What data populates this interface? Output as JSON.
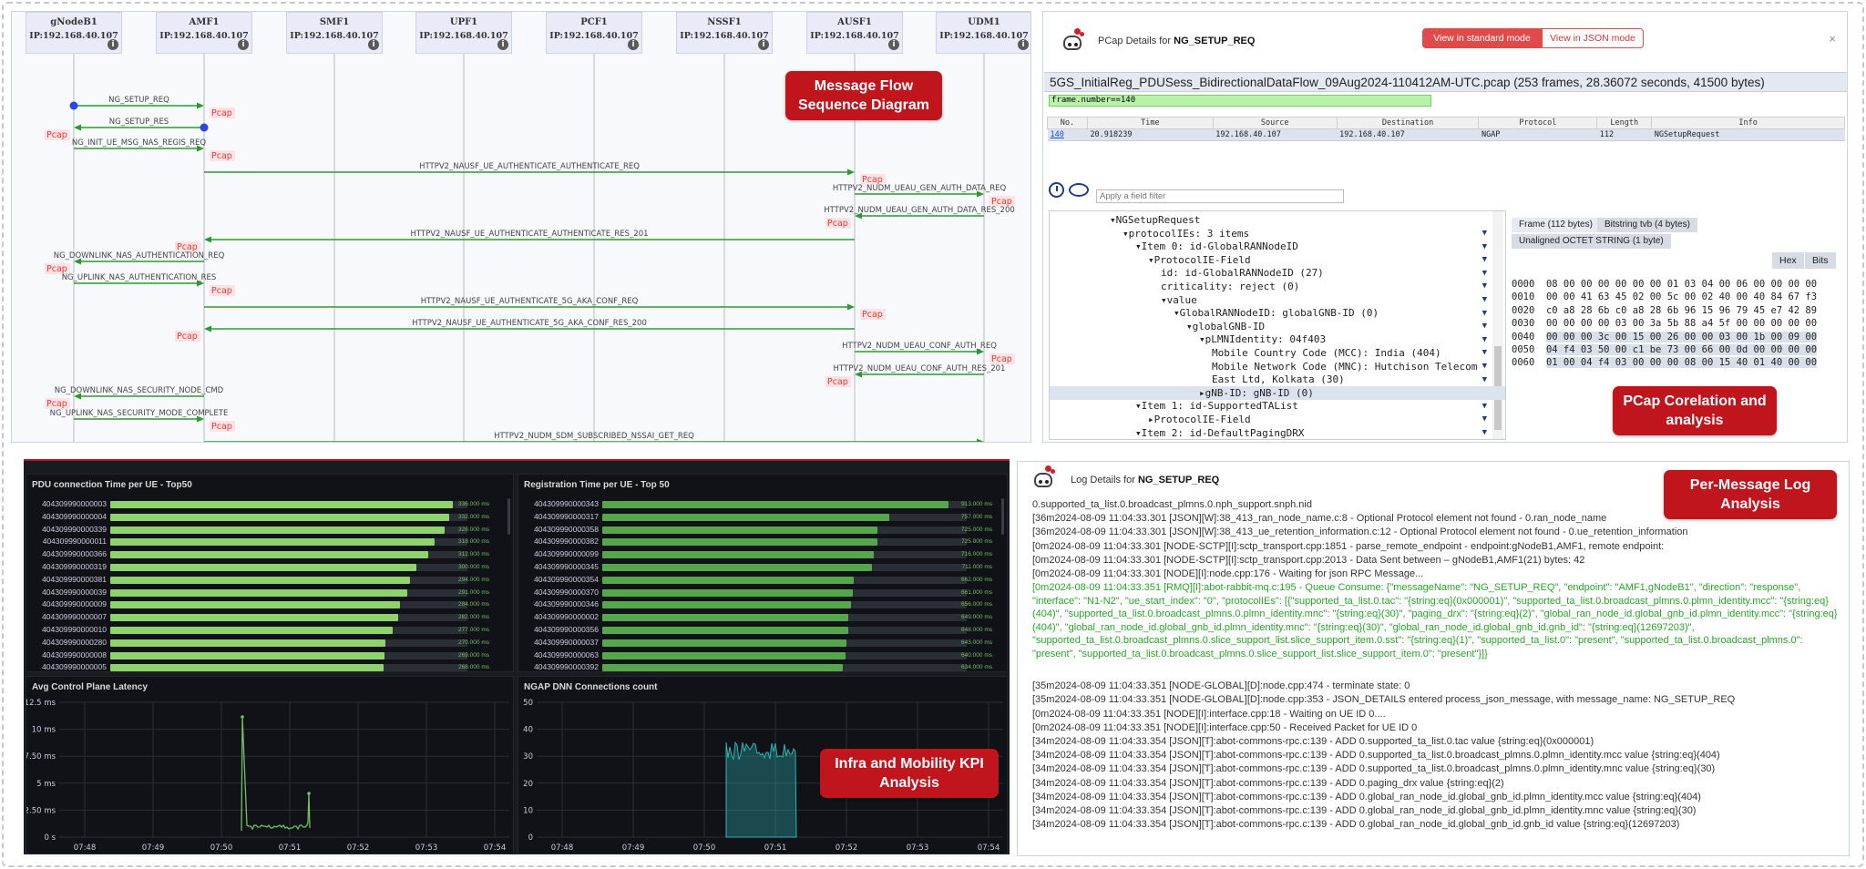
{
  "sequence": {
    "nodes": [
      {
        "name": "gNodeB1",
        "ip": "IP:192.168.40.107"
      },
      {
        "name": "AMF1",
        "ip": "IP:192.168.40.107"
      },
      {
        "name": "SMF1",
        "ip": "IP:192.168.40.107"
      },
      {
        "name": "UPF1",
        "ip": "IP:192.168.40.107"
      },
      {
        "name": "PCF1",
        "ip": "IP:192.168.40.107"
      },
      {
        "name": "NSSF1",
        "ip": "IP:192.168.40.107"
      },
      {
        "name": "AUSF1",
        "ip": "IP:192.168.40.107"
      },
      {
        "name": "UDM1",
        "ip": "IP:192.168.40.107"
      }
    ],
    "info_icon": "i",
    "pcap_label": "Pcap",
    "messages": [
      {
        "label": "NG_SETUP_REQ",
        "from": 0,
        "to": 1
      },
      {
        "label": "NG_SETUP_RES",
        "from": 1,
        "to": 0
      },
      {
        "label": "NG_INIT_UE_MSG_NAS_REGIS_REQ",
        "from": 0,
        "to": 1
      },
      {
        "label": "HTTPV2_NAUSF_UE_AUTHENTICATE_AUTHENTICATE_REQ",
        "from": 1,
        "to": 6
      },
      {
        "label": "HTTPV2_NUDM_UEAU_GEN_AUTH_DATA_REQ",
        "from": 6,
        "to": 7
      },
      {
        "label": "HTTPV2_NUDM_UEAU_GEN_AUTH_DATA_RES_200",
        "from": 7,
        "to": 6
      },
      {
        "label": "HTTPV2_NAUSF_UE_AUTHENTICATE_AUTHENTICATE_RES_201",
        "from": 6,
        "to": 1
      },
      {
        "label": "NG_DOWNLINK_NAS_AUTHENTICATION_REQ",
        "from": 1,
        "to": 0
      },
      {
        "label": "NG_UPLINK_NAS_AUTHENTICATION_RES",
        "from": 0,
        "to": 1
      },
      {
        "label": "HTTPV2_NAUSF_UE_AUTHENTICATE_5G_AKA_CONF_REQ",
        "from": 1,
        "to": 6
      },
      {
        "label": "HTTPV2_NAUSF_UE_AUTHENTICATE_5G_AKA_CONF_RES_200",
        "from": 6,
        "to": 1
      },
      {
        "label": "HTTPV2_NUDM_UEAU_CONF_AUTH_REQ",
        "from": 6,
        "to": 7
      },
      {
        "label": "HTTPV2_NUDM_UEAU_CONF_AUTH_RES_201",
        "from": 7,
        "to": 6
      },
      {
        "label": "NG_DOWNLINK_NAS_SECURITY_NODE_CMD",
        "from": 1,
        "to": 0
      },
      {
        "label": "NG_UPLINK_NAS_SECURITY_MODE_COMPLETE",
        "from": 0,
        "to": 1
      },
      {
        "label": "HTTPV2_NUDM_SDM_SUBSCRIBED_NSSAI_GET_REQ",
        "from": 1,
        "to": 7
      }
    ]
  },
  "callouts": {
    "seq": "Message Flow Sequence Diagram",
    "pcap": "PCap Corelation and analysis",
    "kpi": "Infra and Mobility KPI Analysis",
    "log": "Per-Message Log Analysis"
  },
  "pcap": {
    "title_prefix": "PCap Details for ",
    "title_msg": "NG_SETUP_REQ",
    "btn_standard": "View in standard mode",
    "btn_json": "View in JSON mode",
    "close": "×",
    "file_line": "5GS_InitialReg_PDUSess_BidirectionalDataFlow_09Aug2024-110412AM-UTC.pcap (253 frames, 28.36072 seconds, 41500 bytes)",
    "display_filter": "frame.number==140",
    "columns": [
      "No.",
      "Time",
      "Source",
      "Destination",
      "Protocol",
      "Length",
      "Info"
    ],
    "row": [
      "140",
      "20.918239",
      "192.168.40.107",
      "192.168.40.107",
      "NGAP",
      "112",
      "NGSetupRequest"
    ],
    "field_filter_placeholder": "Apply a field filter",
    "tree": [
      {
        "indent": 0,
        "arrow": "▾",
        "text": "NGSetupRequest"
      },
      {
        "indent": 1,
        "arrow": "▾",
        "text": "protocolIEs: 3 items"
      },
      {
        "indent": 2,
        "arrow": "▾",
        "text": "Item 0: id-GlobalRANNodeID"
      },
      {
        "indent": 3,
        "arrow": "▾",
        "text": "ProtocolIE-Field"
      },
      {
        "indent": 4,
        "arrow": "",
        "text": "id: id-GlobalRANNodeID (27)"
      },
      {
        "indent": 4,
        "arrow": "",
        "text": "criticality: reject (0)"
      },
      {
        "indent": 4,
        "arrow": "▾",
        "text": "value"
      },
      {
        "indent": 5,
        "arrow": "▾",
        "text": "GlobalRANNodeID: globalGNB-ID (0)"
      },
      {
        "indent": 6,
        "arrow": "▾",
        "text": "globalGNB-ID"
      },
      {
        "indent": 7,
        "arrow": "▾",
        "text": "pLMNIdentity: 04f403"
      },
      {
        "indent": 8,
        "arrow": "",
        "text": "Mobile Country Code (MCC): India (404)"
      },
      {
        "indent": 8,
        "arrow": "",
        "text": "Mobile Network Code (MNC): Hutchison Telecom"
      },
      {
        "indent": 8,
        "arrow": "",
        "text": "East Ltd, Kolkata (30)"
      },
      {
        "indent": 7,
        "arrow": "▸",
        "text": "gNB-ID: gNB-ID (0)"
      },
      {
        "indent": 2,
        "arrow": "▾",
        "text": "Item 1: id-SupportedTAList"
      },
      {
        "indent": 3,
        "arrow": "▸",
        "text": "ProtocolIE-Field"
      },
      {
        "indent": 2,
        "arrow": "▾",
        "text": "Item 2: id-DefaultPagingDRX"
      }
    ],
    "tree_marker": "▼",
    "byte_tabs": [
      "Frame (112 bytes)",
      "Bitstring tvb (4 bytes)"
    ],
    "byte_tab2": "Unaligned OCTET STRING (1 byte)",
    "hex_btn": "Hex",
    "bits_btn": "Bits",
    "hex_rows": [
      {
        "off": "0000",
        "bytes": "08 00 00 00 00 00 00 01 03 04 00 06 00 00 00 00"
      },
      {
        "off": "0010",
        "bytes": "00 00 41 63 45 02 00 5c 00 02 40 00 40 84 67 f3"
      },
      {
        "off": "0020",
        "bytes": "c0 a8 28 6b c0 a8 28 6b 96 15 96 79 45 e7 42 89"
      },
      {
        "off": "0030",
        "bytes": "00 00 00 00 03 00 3a 5b 88 a4 5f 00 00 00 00 00"
      },
      {
        "off": "0040",
        "bytes": "00 00 00 3c 00 15 00 26 00 00 03 00 1b 00 09 00"
      },
      {
        "off": "0050",
        "bytes": "04 f4 03 50 00 c1 be 73 00 66 00 0d 00 00 00 00"
      },
      {
        "off": "0060",
        "bytes": "01 00 04 f4 03 00 00 00 08 00 15 40 01 40 00 00"
      }
    ]
  },
  "dashboard": {
    "pdu": {
      "title": "PDU connection Time per UE - Top50",
      "rows": [
        {
          "ue": "404309990000003",
          "value": 336,
          "label": "336.000 ms"
        },
        {
          "ue": "404309990000004",
          "value": 332,
          "label": "332.000 ms"
        },
        {
          "ue": "404309990000339",
          "value": 328,
          "label": "328.000 ms"
        },
        {
          "ue": "404309990000011",
          "value": 318,
          "label": "318.000 ms"
        },
        {
          "ue": "404309990000366",
          "value": 312,
          "label": "312.000 ms"
        },
        {
          "ue": "404309990000319",
          "value": 300,
          "label": "300.000 ms"
        },
        {
          "ue": "404309990000381",
          "value": 294,
          "label": "294.000 ms"
        },
        {
          "ue": "404309990000039",
          "value": 291,
          "label": "291.000 ms"
        },
        {
          "ue": "404309990000009",
          "value": 284,
          "label": "284.000 ms"
        },
        {
          "ue": "404309990000007",
          "value": 282,
          "label": "282.000 ms"
        },
        {
          "ue": "404309990000010",
          "value": 277,
          "label": "277.000 ms"
        },
        {
          "ue": "404309990000280",
          "value": 270,
          "label": "270.000 ms"
        },
        {
          "ue": "404309990000008",
          "value": 269,
          "label": "269.000 ms"
        },
        {
          "ue": "404309990000005",
          "value": 268,
          "label": "268.000 ms"
        }
      ]
    },
    "reg": {
      "title": "Registration Time per UE - Top 50",
      "rows": [
        {
          "ue": "404309990000343",
          "value": 913,
          "label": "913.000 ms"
        },
        {
          "ue": "404309990000317",
          "value": 757,
          "label": "757.000 ms"
        },
        {
          "ue": "404309990000358",
          "value": 725,
          "label": "725.000 ms"
        },
        {
          "ue": "404309990000382",
          "value": 725,
          "label": "725.000 ms"
        },
        {
          "ue": "404309990000099",
          "value": 716,
          "label": "716.000 ms"
        },
        {
          "ue": "404309990000345",
          "value": 711,
          "label": "711.000 ms"
        },
        {
          "ue": "404309990000354",
          "value": 662,
          "label": "662.000 ms"
        },
        {
          "ue": "404309990000370",
          "value": 661,
          "label": "661.000 ms"
        },
        {
          "ue": "404309990000346",
          "value": 656,
          "label": "656.000 ms"
        },
        {
          "ue": "404309990000002",
          "value": 649,
          "label": "649.000 ms"
        },
        {
          "ue": "404309990000356",
          "value": 648,
          "label": "648.000 ms"
        },
        {
          "ue": "404309990000037",
          "value": 643,
          "label": "643.000 ms"
        },
        {
          "ue": "404309990000063",
          "value": 640,
          "label": "640.000 ms"
        },
        {
          "ue": "404309990000392",
          "value": 634,
          "label": "634.000 ms"
        }
      ]
    },
    "latency": {
      "title": "Avg Control Plane Latency",
      "yticks": [
        "12.5 ms",
        "10 ms",
        "7.50 ms",
        "5 ms",
        "2.50 ms",
        "0 s"
      ],
      "xticks": [
        "07:48",
        "07:49",
        "07:50",
        "07:51",
        "07:52",
        "07:53",
        "07:54"
      ]
    },
    "ngap": {
      "title": "NGAP DNN Connections count",
      "yticks": [
        "50",
        "40",
        "30",
        "20",
        "10",
        "0"
      ],
      "xticks": [
        "07:48",
        "07:49",
        "07:50",
        "07:51",
        "07:52",
        "07:53",
        "07:54"
      ]
    }
  },
  "log": {
    "title_prefix": "Log Details for ",
    "title_msg": "NG_SETUP_REQ",
    "lines": [
      {
        "t": "0.supported_ta_list.0.broadcast_plmns.0.nph_support.snph.nid",
        "g": false
      },
      {
        "t": "[36m2024-08-09 11:04:33.301 [JSON][W]:38_413_ran_node_name.c:8 - Optional Protocol element not found - 0.ran_node_name",
        "g": false
      },
      {
        "t": "[36m2024-08-09 11:04:33.301 [JSON][W]:38_413_ue_retention_information.c:12 - Optional Protocol element not found - 0.ue_retention_information",
        "g": false
      },
      {
        "t": "[0m2024-08-09 11:04:33.301 [NODE-SCTP][I]:sctp_transport.cpp:1851 - parse_remote_endpoint - endpoint:gNodeB1,AMF1, remote endpoint:",
        "g": false
      },
      {
        "t": "[0m2024-08-09 11:04:33.301 [NODE-SCTP][I]:sctp_transport.cpp:2013 - Data Sent between – gNodeB1,AMF1(21) bytes: 42",
        "g": false
      },
      {
        "t": "[0m2024-08-09 11:04:33.301 [NODE][I]:node.cpp:176 - Waiting for json RPC Message...",
        "g": false
      }
    ],
    "green_block": "[0m2024-08-09 11:04:33.351 [RMQ][I]:abot-rabbit-mq.c:195 - Queue Consume: {\"messageName\": \"NG_SETUP_REQ\", \"endpoint\": \"AMF1,gNodeB1\", \"direction\": \"response\", \"interface\": \"N1-N2\", \"ue_start_index\": \"0\", \"protocolIEs\": [{\"supported_ta_list.0.tac\": \"{string:eq}(0x000001)\", \"supported_ta_list.0.broadcast_plmns.0.plmn_identity.mcc\": \"{string:eq}(404)\", \"supported_ta_list.0.broadcast_plmns.0.plmn_identity.mnc\": \"{string:eq}(30)\", \"paging_drx\": \"{string:eq}(2)\", \"global_ran_node_id.global_gnb_id.plmn_identity.mcc\": \"{string:eq}(404)\", \"global_ran_node_id.global_gnb_id.plmn_identity.mnc\": \"{string:eq}(30)\", \"global_ran_node_id.global_gnb_id.gnb_id\": \"{string:eq}(12697203)\", \"supported_ta_list.0.broadcast_plmns.0.slice_support_list.slice_support_item.0.sst\": \"{string:eq}(1)\", \"supported_ta_list.0\": \"present\", \"supported_ta_list.0.broadcast_plmns.0\": \"present\", \"supported_ta_list.0.broadcast_plmns.0.slice_support_list.slice_support_item.0\": \"present\"}]}",
    "lines2": [
      "[35m2024-08-09 11:04:33.351 [NODE-GLOBAL][D]:node.cpp:474 - terminate state: 0",
      "[35m2024-08-09 11:04:33.351 [NODE-GLOBAL][D]:node.cpp:353 - JSON_DETAILS entered process_json_message, with message_name: NG_SETUP_REQ",
      "[0m2024-08-09 11:04:33.351 [NODE][I]:interface.cpp:18 - Waiting on UE ID 0....",
      "[0m2024-08-09 11:04:33.351 [NODE][I]:interface.cpp:50 - Received Packet for UE ID 0",
      "[34m2024-08-09 11:04:33.354 [JSON][T]:abot-commons-rpc.c:139 - ADD 0.supported_ta_list.0.tac value {string:eq}(0x000001)",
      "[34m2024-08-09 11:04:33.354 [JSON][T]:abot-commons-rpc.c:139 - ADD 0.supported_ta_list.0.broadcast_plmns.0.plmn_identity.mcc value {string:eq}(404)",
      "[34m2024-08-09 11:04:33.354 [JSON][T]:abot-commons-rpc.c:139 - ADD 0.supported_ta_list.0.broadcast_plmns.0.plmn_identity.mnc value {string:eq}(30)",
      "[34m2024-08-09 11:04:33.354 [JSON][T]:abot-commons-rpc.c:139 - ADD 0.paging_drx value {string:eq}(2)",
      "[34m2024-08-09 11:04:33.354 [JSON][T]:abot-commons-rpc.c:139 - ADD 0.global_ran_node_id.global_gnb_id.plmn_identity.mcc value {string:eq}(404)",
      "[34m2024-08-09 11:04:33.354 [JSON][T]:abot-commons-rpc.c:139 - ADD 0.global_ran_node_id.global_gnb_id.plmn_identity.mnc value {string:eq}(30)",
      "[34m2024-08-09 11:04:33.354 [JSON][T]:abot-commons-rpc.c:139 - ADD 0.global_ran_node_id.global_gnb_id.gnb_id value {string:eq}(12697203)"
    ]
  },
  "colors": {
    "accent_red": "#c0151d",
    "bar_green": "#73bf69",
    "bar_green_dark": "#37872d",
    "teal": "#2ab5b5",
    "arrow_green": "#2c9a2c"
  }
}
